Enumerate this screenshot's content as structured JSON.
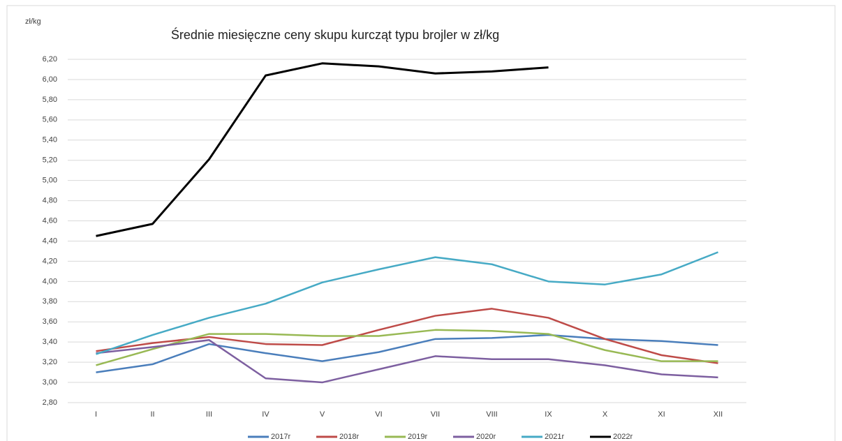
{
  "chart_data": {
    "type": "line",
    "title": "Średnie miesięczne ceny skupu kurcząt typu brojler w zł/kg",
    "y_label": "zł/kg",
    "categories": [
      "I",
      "II",
      "III",
      "IV",
      "V",
      "VI",
      "VII",
      "VIII",
      "IX",
      "X",
      "XI",
      "XII"
    ],
    "series": [
      {
        "name": "2017r",
        "color": "#4a7ebb",
        "values": [
          3.1,
          3.18,
          3.38,
          3.29,
          3.21,
          3.3,
          3.43,
          3.44,
          3.47,
          3.43,
          3.41,
          3.37
        ]
      },
      {
        "name": "2018r",
        "color": "#be4b48",
        "values": [
          3.31,
          3.39,
          3.45,
          3.38,
          3.37,
          3.52,
          3.66,
          3.73,
          3.64,
          3.43,
          3.27,
          3.19
        ]
      },
      {
        "name": "2019r",
        "color": "#98b954",
        "values": [
          3.17,
          3.33,
          3.48,
          3.48,
          3.46,
          3.46,
          3.52,
          3.51,
          3.48,
          3.32,
          3.21,
          3.21
        ]
      },
      {
        "name": "2020r",
        "color": "#7d5fa0",
        "values": [
          3.29,
          3.35,
          3.42,
          3.04,
          3.0,
          3.13,
          3.26,
          3.23,
          3.23,
          3.17,
          3.08,
          3.05
        ]
      },
      {
        "name": "2021r",
        "color": "#46aac5",
        "values": [
          3.28,
          3.47,
          3.64,
          3.78,
          3.99,
          4.12,
          4.24,
          4.17,
          4.0,
          3.97,
          4.07,
          4.29
        ]
      },
      {
        "name": "2022r",
        "color": "#000000",
        "values": [
          4.45,
          4.57,
          5.21,
          6.04,
          6.16,
          6.13,
          6.06,
          6.08,
          6.12,
          null,
          null,
          null
        ]
      }
    ],
    "ylim": [
      2.8,
      6.2
    ],
    "yticks": [
      {
        "value": 2.8,
        "label": "2,80"
      },
      {
        "value": 3.0,
        "label": "3,00"
      },
      {
        "value": 3.2,
        "label": "3,20"
      },
      {
        "value": 3.4,
        "label": "3,40"
      },
      {
        "value": 3.6,
        "label": "3,60"
      },
      {
        "value": 3.8,
        "label": "3,80"
      },
      {
        "value": 4.0,
        "label": "4,00"
      },
      {
        "value": 4.2,
        "label": "4,20"
      },
      {
        "value": 4.4,
        "label": "4,40"
      },
      {
        "value": 4.6,
        "label": "4,60"
      },
      {
        "value": 4.8,
        "label": "4,80"
      },
      {
        "value": 5.0,
        "label": "5,00"
      },
      {
        "value": 5.2,
        "label": "5,20"
      },
      {
        "value": 5.4,
        "label": "5,40"
      },
      {
        "value": 5.6,
        "label": "5,60"
      },
      {
        "value": 5.8,
        "label": "5,80"
      },
      {
        "value": 6.0,
        "label": "6,00"
      },
      {
        "value": 6.2,
        "label": "6,20"
      }
    ],
    "grid": true,
    "legend": "bottom"
  }
}
